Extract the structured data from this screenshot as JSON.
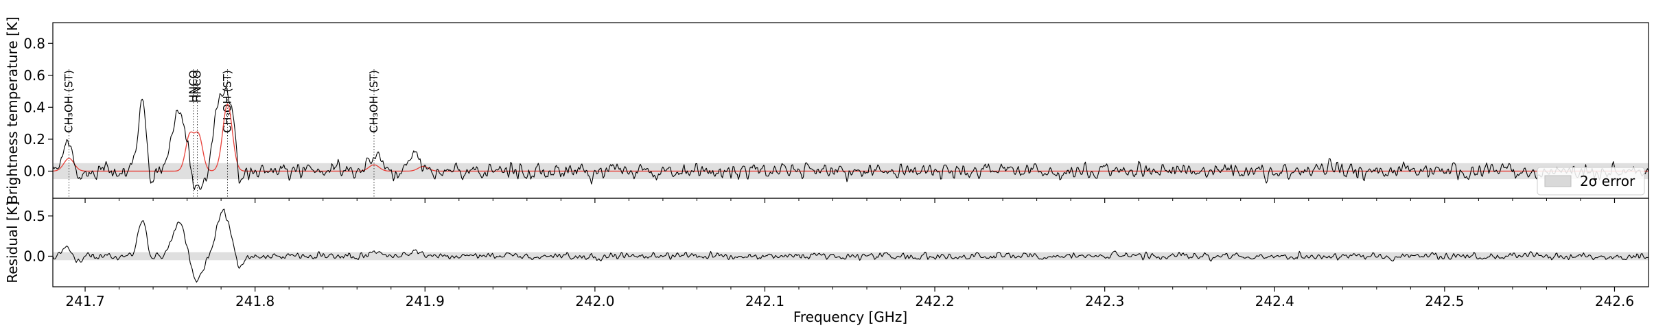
{
  "chart_data": [
    {
      "type": "line",
      "panel": "spectrum",
      "title": "",
      "xlabel": "",
      "ylabel": "Brightness temperature [K]",
      "xlim": [
        241.681,
        242.62
      ],
      "ylim": [
        -0.17,
        0.93
      ],
      "yticks": [
        0.0,
        0.2,
        0.4,
        0.6,
        0.8
      ],
      "ytick_labels": [
        "0.0",
        "0.2",
        "0.4",
        "0.6",
        "0.8"
      ],
      "grid": false,
      "legend": {
        "position": "bottom-right",
        "entries": [
          {
            "label": "2σ error",
            "color": "#d9d9d9"
          }
        ]
      },
      "error_band": {
        "lower": -0.05,
        "upper": 0.05,
        "color": "#d9d9d9"
      },
      "line_ids": [
        {
          "label": "CH₃OH (ST)",
          "x": 241.6905
        },
        {
          "label": "HNCO",
          "x": 241.7637
        },
        {
          "label": "HNCO",
          "x": 241.766
        },
        {
          "label": "CH₃OH (ST)",
          "x": 241.7838
        },
        {
          "label": "CH₃OH (ST)",
          "x": 241.87
        }
      ],
      "series": [
        {
          "style": "observed",
          "color": "#000000",
          "features": [
            {
              "center": 241.69,
              "amp": 0.2,
              "width": 0.0035
            },
            {
              "center": 241.695,
              "amp": -0.1,
              "width": 0.0025
            },
            {
              "center": 241.734,
              "amp": 0.45,
              "width": 0.0024
            },
            {
              "center": 241.738,
              "amp": -0.14,
              "width": 0.0015
            },
            {
              "center": 241.755,
              "amp": 0.38,
              "width": 0.004
            },
            {
              "center": 241.763,
              "amp": -0.07,
              "width": 0.002
            },
            {
              "center": 241.768,
              "amp": -0.12,
              "width": 0.003
            },
            {
              "center": 241.78,
              "amp": 0.45,
              "width": 0.004
            },
            {
              "center": 241.786,
              "amp": 0.3,
              "width": 0.0025
            },
            {
              "center": 241.791,
              "amp": -0.13,
              "width": 0.0015
            },
            {
              "center": 241.87,
              "amp": 0.1,
              "width": 0.004
            },
            {
              "center": 241.894,
              "amp": 0.1,
              "width": 0.0035
            }
          ],
          "noise_sigma": 0.025
        },
        {
          "style": "model",
          "color": "#e8413a",
          "features": [
            {
              "center": 241.6905,
              "amp": 0.08,
              "width": 0.003
            },
            {
              "center": 241.7615,
              "amp": 0.22,
              "width": 0.0024
            },
            {
              "center": 241.7668,
              "amp": 0.22,
              "width": 0.0024
            },
            {
              "center": 241.7838,
              "amp": 0.42,
              "width": 0.0028
            },
            {
              "center": 241.87,
              "amp": 0.04,
              "width": 0.003
            },
            {
              "center": 241.899,
              "amp": 0.03,
              "width": 0.003
            }
          ]
        }
      ]
    },
    {
      "type": "line",
      "panel": "residual",
      "title": "",
      "xlabel": "Frequency [GHz]",
      "ylabel": "Residual [K]",
      "xlim": [
        241.681,
        242.62
      ],
      "ylim": [
        -0.38,
        0.72
      ],
      "yticks": [
        0.0,
        0.5
      ],
      "ytick_labels": [
        "0.0",
        "0.5"
      ],
      "xticks": [
        241.7,
        241.8,
        241.9,
        242.0,
        242.1,
        242.2,
        242.3,
        242.4,
        242.5,
        242.6
      ],
      "xtick_labels": [
        "241.7",
        "241.8",
        "241.9",
        "242.0",
        "242.1",
        "242.2",
        "242.3",
        "242.4",
        "242.5",
        "242.6"
      ],
      "grid": false,
      "error_band": {
        "lower": -0.05,
        "upper": 0.05,
        "color": "#d9d9d9"
      },
      "series": [
        {
          "style": "residual",
          "color": "#000000",
          "features": [
            {
              "center": 241.69,
              "amp": 0.12,
              "width": 0.003
            },
            {
              "center": 241.695,
              "amp": -0.1,
              "width": 0.0025
            },
            {
              "center": 241.734,
              "amp": 0.46,
              "width": 0.0026
            },
            {
              "center": 241.738,
              "amp": -0.14,
              "width": 0.0015
            },
            {
              "center": 241.755,
              "amp": 0.4,
              "width": 0.004
            },
            {
              "center": 241.766,
              "amp": -0.3,
              "width": 0.0035
            },
            {
              "center": 241.781,
              "amp": 0.55,
              "width": 0.004
            },
            {
              "center": 241.791,
              "amp": -0.2,
              "width": 0.0018
            },
            {
              "center": 241.87,
              "amp": 0.05,
              "width": 0.004
            },
            {
              "center": 241.894,
              "amp": 0.07,
              "width": 0.0035
            }
          ],
          "noise_sigma": 0.022
        }
      ]
    }
  ]
}
